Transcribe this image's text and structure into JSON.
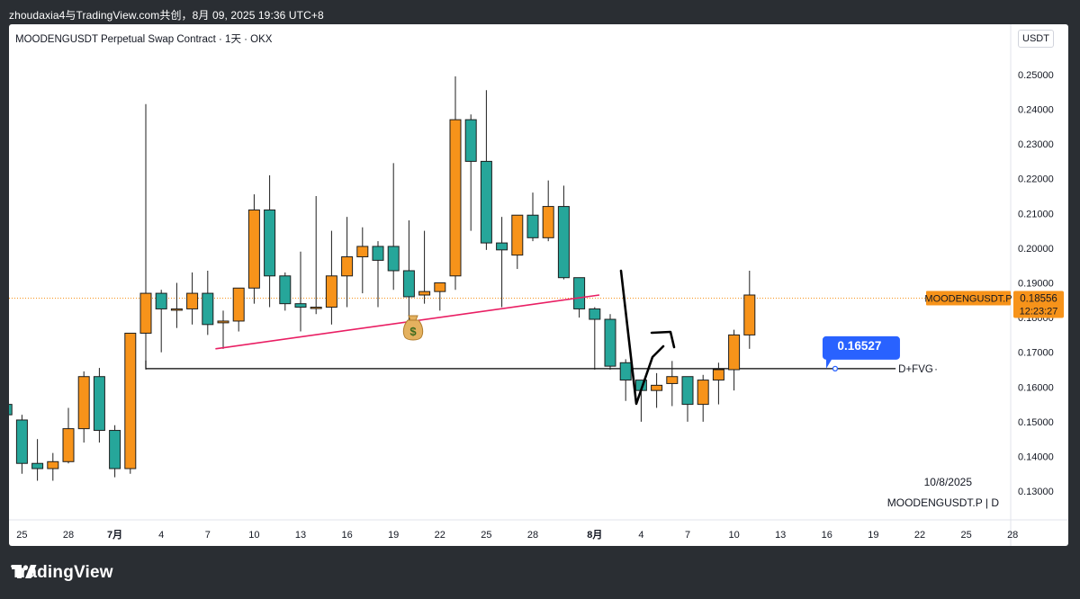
{
  "caption": "zhoudaxia4与TradingView.com共创，8月 09, 2025 19:36 UTC+8",
  "header": {
    "symbol_title": "MOODENGUSDT Perpetual Swap Contract · 1天 · OKX",
    "currency": "USDT"
  },
  "footer": {
    "brand": "TradingView"
  },
  "colors": {
    "up": "#f7931a",
    "down": "#26a69a",
    "outline": "#1e1e1e",
    "trendline": "#e91e63",
    "level_line": "#000000",
    "tag_bg": "#2962ff",
    "price_tag_bg": "#f7931a",
    "price_line": "#f7931a"
  },
  "icons": {
    "money_bag": "money-bag-icon",
    "logo": "tradingview-logo-icon"
  },
  "chart_data": {
    "type": "candlestick",
    "interval": "D",
    "ylim": [
      0.122,
      0.258
    ],
    "y_ticks": [
      "0.13000",
      "0.14000",
      "0.15000",
      "0.16000",
      "0.17000",
      "0.18000",
      "0.19000",
      "0.20000",
      "0.21000",
      "0.22000",
      "0.23000",
      "0.24000",
      "0.25000"
    ],
    "x_ticks": [
      {
        "label": "25",
        "day": 0
      },
      {
        "label": "28",
        "day": 3
      },
      {
        "label": "7月",
        "day": 6
      },
      {
        "label": "4",
        "day": 9
      },
      {
        "label": "7",
        "day": 12
      },
      {
        "label": "10",
        "day": 15
      },
      {
        "label": "13",
        "day": 18
      },
      {
        "label": "16",
        "day": 21
      },
      {
        "label": "19",
        "day": 24
      },
      {
        "label": "22",
        "day": 27
      },
      {
        "label": "25",
        "day": 30
      },
      {
        "label": "28",
        "day": 33
      },
      {
        "label": "8月",
        "day": 37
      },
      {
        "label": "4",
        "day": 40
      },
      {
        "label": "7",
        "day": 43
      },
      {
        "label": "10",
        "day": 46
      },
      {
        "label": "13",
        "day": 49
      },
      {
        "label": "16",
        "day": 52
      },
      {
        "label": "19",
        "day": 55
      },
      {
        "label": "22",
        "day": 58
      },
      {
        "label": "25",
        "day": 61
      },
      {
        "label": "28",
        "day": 64
      }
    ],
    "candles": [
      {
        "day": -1,
        "o": 0.155,
        "h": 0.156,
        "l": 0.15,
        "c": 0.152
      },
      {
        "day": 0,
        "o": 0.1505,
        "h": 0.152,
        "l": 0.135,
        "c": 0.138
      },
      {
        "day": 1,
        "o": 0.138,
        "h": 0.145,
        "l": 0.133,
        "c": 0.1365
      },
      {
        "day": 2,
        "o": 0.1365,
        "h": 0.141,
        "l": 0.133,
        "c": 0.1385
      },
      {
        "day": 3,
        "o": 0.1385,
        "h": 0.154,
        "l": 0.138,
        "c": 0.148
      },
      {
        "day": 4,
        "o": 0.148,
        "h": 0.1645,
        "l": 0.144,
        "c": 0.163
      },
      {
        "day": 5,
        "o": 0.163,
        "h": 0.1655,
        "l": 0.144,
        "c": 0.1475
      },
      {
        "day": 6,
        "o": 0.1475,
        "h": 0.149,
        "l": 0.134,
        "c": 0.1365
      },
      {
        "day": 7,
        "o": 0.1365,
        "h": 0.1755,
        "l": 0.135,
        "c": 0.1755
      },
      {
        "day": 8,
        "o": 0.1755,
        "h": 0.2415,
        "l": 0.165,
        "c": 0.187
      },
      {
        "day": 9,
        "o": 0.187,
        "h": 0.188,
        "l": 0.17,
        "c": 0.1825
      },
      {
        "day": 10,
        "o": 0.1825,
        "h": 0.19,
        "l": 0.177,
        "c": 0.1825
      },
      {
        "day": 11,
        "o": 0.1825,
        "h": 0.193,
        "l": 0.178,
        "c": 0.187
      },
      {
        "day": 12,
        "o": 0.187,
        "h": 0.1935,
        "l": 0.175,
        "c": 0.178
      },
      {
        "day": 13,
        "o": 0.1785,
        "h": 0.182,
        "l": 0.171,
        "c": 0.179
      },
      {
        "day": 14,
        "o": 0.179,
        "h": 0.1885,
        "l": 0.176,
        "c": 0.1885
      },
      {
        "day": 15,
        "o": 0.1885,
        "h": 0.2155,
        "l": 0.184,
        "c": 0.211
      },
      {
        "day": 16,
        "o": 0.211,
        "h": 0.221,
        "l": 0.183,
        "c": 0.192
      },
      {
        "day": 17,
        "o": 0.192,
        "h": 0.193,
        "l": 0.182,
        "c": 0.184
      },
      {
        "day": 18,
        "o": 0.184,
        "h": 0.199,
        "l": 0.176,
        "c": 0.183
      },
      {
        "day": 19,
        "o": 0.183,
        "h": 0.215,
        "l": 0.181,
        "c": 0.183
      },
      {
        "day": 20,
        "o": 0.183,
        "h": 0.205,
        "l": 0.178,
        "c": 0.192
      },
      {
        "day": 21,
        "o": 0.192,
        "h": 0.209,
        "l": 0.183,
        "c": 0.1975
      },
      {
        "day": 22,
        "o": 0.1975,
        "h": 0.206,
        "l": 0.187,
        "c": 0.2005
      },
      {
        "day": 23,
        "o": 0.2005,
        "h": 0.202,
        "l": 0.183,
        "c": 0.1965
      },
      {
        "day": 24,
        "o": 0.2005,
        "h": 0.2245,
        "l": 0.188,
        "c": 0.1935
      },
      {
        "day": 25,
        "o": 0.1935,
        "h": 0.208,
        "l": 0.177,
        "c": 0.186
      },
      {
        "day": 26,
        "o": 0.1865,
        "h": 0.205,
        "l": 0.184,
        "c": 0.1875
      },
      {
        "day": 27,
        "o": 0.1875,
        "h": 0.19,
        "l": 0.182,
        "c": 0.19
      },
      {
        "day": 28,
        "o": 0.192,
        "h": 0.2495,
        "l": 0.188,
        "c": 0.237
      },
      {
        "day": 29,
        "o": 0.237,
        "h": 0.2385,
        "l": 0.205,
        "c": 0.225
      },
      {
        "day": 30,
        "o": 0.225,
        "h": 0.2455,
        "l": 0.1995,
        "c": 0.2015
      },
      {
        "day": 31,
        "o": 0.2015,
        "h": 0.209,
        "l": 0.183,
        "c": 0.1995
      },
      {
        "day": 32,
        "o": 0.198,
        "h": 0.2085,
        "l": 0.194,
        "c": 0.2095
      },
      {
        "day": 33,
        "o": 0.2095,
        "h": 0.216,
        "l": 0.202,
        "c": 0.203
      },
      {
        "day": 34,
        "o": 0.203,
        "h": 0.2195,
        "l": 0.202,
        "c": 0.212
      },
      {
        "day": 35,
        "o": 0.212,
        "h": 0.218,
        "l": 0.191,
        "c": 0.1915
      },
      {
        "day": 36,
        "o": 0.1915,
        "h": 0.1915,
        "l": 0.18,
        "c": 0.1825
      },
      {
        "day": 37,
        "o": 0.1825,
        "h": 0.183,
        "l": 0.165,
        "c": 0.1795
      },
      {
        "day": 38,
        "o": 0.1795,
        "h": 0.181,
        "l": 0.165,
        "c": 0.166
      },
      {
        "day": 39,
        "o": 0.167,
        "h": 0.168,
        "l": 0.156,
        "c": 0.162
      },
      {
        "day": 40,
        "o": 0.162,
        "h": 0.162,
        "l": 0.15,
        "c": 0.159
      },
      {
        "day": 41,
        "o": 0.159,
        "h": 0.164,
        "l": 0.154,
        "c": 0.1605
      },
      {
        "day": 42,
        "o": 0.161,
        "h": 0.1675,
        "l": 0.1545,
        "c": 0.163
      },
      {
        "day": 43,
        "o": 0.163,
        "h": 0.163,
        "l": 0.15,
        "c": 0.155
      },
      {
        "day": 44,
        "o": 0.155,
        "h": 0.1635,
        "l": 0.15,
        "c": 0.162
      },
      {
        "day": 45,
        "o": 0.162,
        "h": 0.167,
        "l": 0.155,
        "c": 0.165
      },
      {
        "day": 46,
        "o": 0.165,
        "h": 0.1765,
        "l": 0.159,
        "c": 0.175
      },
      {
        "day": 47,
        "o": 0.175,
        "h": 0.1935,
        "l": 0.171,
        "c": 0.1865
      }
    ],
    "overlays": {
      "trendline": {
        "from": {
          "day": 12.5,
          "price": 0.171
        },
        "to": {
          "day": 37.3,
          "price": 0.1865
        }
      },
      "support_line": {
        "from_day": 8,
        "to_day": 53.3,
        "price": 0.1653,
        "label": "D+FVG"
      },
      "price_tag": {
        "value": "0.16527",
        "day": 52.3
      },
      "current_price_line": {
        "price": 0.1856
      }
    },
    "annotations": {
      "date_label": "10/8/2025",
      "symbol_label": "MOODENGUSDT.P | D"
    },
    "last_price": {
      "symbol": "MOODENGUSDT.P",
      "value": "0.18556",
      "countdown": "12:23:27"
    }
  }
}
